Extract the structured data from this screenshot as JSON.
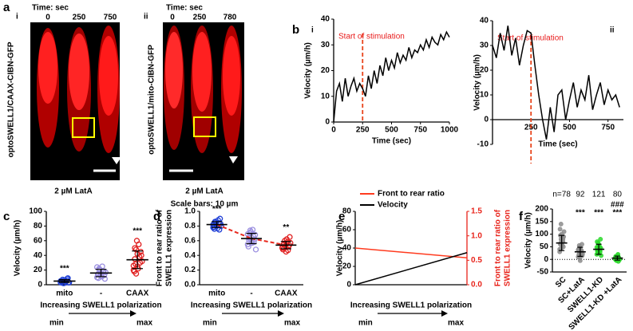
{
  "figure_a": {
    "panel": "a",
    "scale_note": "Scale bars: 10 µm",
    "images": [
      {
        "label": "i",
        "time_label": "Time: sec",
        "times": [
          0,
          250,
          750
        ],
        "construct": "optoSWELL1/CAAX-CIBN-GFP",
        "treatment": "2 µM LatA"
      },
      {
        "label": "ii",
        "time_label": "Time: sec",
        "times": [
          0,
          250,
          780
        ],
        "construct": "optoSWELL1/mito-CIBN-GFP",
        "treatment": "2 µM LatA"
      }
    ]
  },
  "chart_data": [
    {
      "type": "line",
      "panel": "b",
      "sub": "i",
      "y_label": [
        "Velocity (µm/h)"
      ],
      "x_label": "Time (sec)",
      "annotation": "Start of stimulation",
      "event_x": 250,
      "event_color": "#e8431a",
      "annotation_color": "#e81a1a",
      "x": [
        0,
        25,
        50,
        75,
        100,
        125,
        150,
        175,
        200,
        225,
        250,
        275,
        300,
        325,
        350,
        375,
        400,
        425,
        450,
        475,
        500,
        525,
        550,
        575,
        600,
        625,
        650,
        675,
        700,
        725,
        750,
        775,
        800,
        825,
        850,
        875,
        900,
        925,
        950,
        975,
        1000
      ],
      "values": [
        0,
        12,
        15,
        8,
        17,
        10,
        14,
        17,
        12,
        15,
        13,
        10,
        18,
        13,
        20,
        15,
        22,
        18,
        25,
        20,
        24,
        21,
        27,
        23,
        26,
        24,
        29,
        25,
        28,
        27,
        30,
        28,
        32,
        29,
        33,
        31,
        30,
        34,
        32,
        35,
        33
      ],
      "color": "#000000",
      "xlim": [
        0,
        1000
      ],
      "xticks": [
        0,
        250,
        500,
        750,
        1000
      ],
      "ylim": [
        0,
        40
      ],
      "yticks": [
        0,
        10,
        20,
        30,
        40
      ]
    },
    {
      "type": "line",
      "panel": null,
      "sub": "ii",
      "y_label": [
        "Velocity (µm/h)"
      ],
      "x_label": "Time (sec)",
      "annotation": "Start of stimulation",
      "event_x": 250,
      "event_color": "#e8431a",
      "annotation_color": "#e81a1a",
      "x_axis_at_zero": true,
      "x": [
        0,
        25,
        50,
        75,
        100,
        125,
        150,
        175,
        200,
        225,
        250,
        275,
        300,
        325,
        350,
        375,
        400,
        425,
        450,
        475,
        500,
        525,
        550,
        575,
        600,
        625,
        650,
        675,
        700,
        725,
        750,
        775,
        800,
        825
      ],
      "values": [
        30,
        25,
        35,
        28,
        38,
        26,
        33,
        22,
        30,
        36,
        35,
        22,
        10,
        0,
        -8,
        5,
        -5,
        10,
        12,
        0,
        8,
        15,
        5,
        12,
        8,
        18,
        4,
        10,
        15,
        6,
        12,
        8,
        10,
        5
      ],
      "color": "#000000",
      "xlim": [
        0,
        850
      ],
      "xticks": [
        250,
        500,
        750
      ],
      "ylim": [
        -10,
        40
      ],
      "yticks": [
        -10,
        0,
        10,
        20,
        30,
        40
      ]
    },
    {
      "type": "dotplot",
      "panel": "c",
      "y_label": [
        "Velocity (µm/h)"
      ],
      "x_label": "Increasing SWELL1 polarization",
      "x_min_label": "min",
      "x_max_label": "max",
      "categories": [
        "mito",
        "-",
        "CAAX"
      ],
      "colors": [
        "#1f3fd6",
        "#9b8fe0",
        "#e02020"
      ],
      "marker": "open",
      "values": [
        [
          3,
          5,
          2,
          6,
          4,
          8,
          3,
          5,
          7,
          2,
          4,
          6,
          9,
          3,
          5,
          4
        ],
        [
          10,
          15,
          20,
          12,
          25,
          18,
          8,
          14,
          22,
          16,
          11,
          19,
          13,
          17,
          24,
          9,
          21,
          15
        ],
        [
          20,
          35,
          48,
          25,
          55,
          30,
          40,
          18,
          28,
          60,
          22,
          38,
          45,
          32,
          26,
          50,
          15,
          42
        ]
      ],
      "means": [
        5,
        16,
        34
      ],
      "errors": [
        2,
        5,
        12
      ],
      "annotations": [
        "***",
        null,
        "***"
      ],
      "ylim": [
        0,
        100
      ],
      "yticks": [
        0,
        20,
        40,
        60,
        80,
        100
      ]
    },
    {
      "type": "dotplot",
      "panel": "d",
      "y_label": [
        "Front to rear ratio of",
        "SWELL1 expression"
      ],
      "x_label": "Increasing SWELL1 polarization",
      "x_min_label": "min",
      "x_max_label": "max",
      "categories": [
        "mito",
        "-",
        "CAAX"
      ],
      "colors": [
        "#1f3fd6",
        "#9b8fe0",
        "#e02020"
      ],
      "marker": "open",
      "connect_means": true,
      "connect_color": "#e82a1f",
      "values": [
        [
          0.78,
          0.82,
          0.85,
          0.8,
          0.88,
          0.75,
          0.83,
          0.79,
          0.86,
          0.81,
          0.77,
          0.84,
          0.9,
          0.8,
          0.82,
          0.76
        ],
        [
          0.55,
          0.65,
          0.7,
          0.6,
          0.75,
          0.58,
          0.68,
          0.52,
          0.63,
          0.72,
          0.57,
          0.66,
          0.62,
          0.48,
          0.69,
          0.61,
          0.74,
          0.59
        ],
        [
          0.5,
          0.55,
          0.6,
          0.45,
          0.58,
          0.52,
          0.65,
          0.48,
          0.56,
          0.53,
          0.62,
          0.47,
          0.54,
          0.57,
          0.51
        ]
      ],
      "means": [
        0.82,
        0.63,
        0.54
      ],
      "errors": [
        0.04,
        0.07,
        0.05
      ],
      "annotations": [
        "***",
        null,
        "**"
      ],
      "ylim": [
        0,
        1
      ],
      "yticks": [
        {
          "value": 0,
          "label": "0.0"
        },
        0.2,
        0.4,
        0.6,
        0.8,
        {
          "value": 1,
          "label": "1.0"
        }
      ]
    },
    {
      "type": "line",
      "panel": "e",
      "y_label": [
        "Velocity (µm/h)"
      ],
      "y2_label": [
        "Front to rear ratio of",
        "SWELL1 expression"
      ],
      "x_label": "Increasing SWELL1 polarization",
      "x_min_label": "min",
      "x_max_label": "max",
      "legend": "upper left",
      "y2_color": "#e8231a",
      "x": [
        0,
        1
      ],
      "xlim": [
        0,
        1
      ],
      "series": [
        {
          "name": "Front to rear ratio",
          "color": "#ff3b1f",
          "values": [
            0.75,
            0.55
          ],
          "axis": "y2"
        },
        {
          "name": "Velocity",
          "color": "#000000",
          "values": [
            0,
            35
          ]
        }
      ],
      "ylim": [
        0,
        80
      ],
      "yticks": [
        0,
        20,
        40,
        60,
        80
      ],
      "y2lim": [
        0,
        1.5
      ],
      "y2ticks": [
        {
          "value": 0,
          "label": "0.0"
        },
        0.5,
        {
          "value": 1,
          "label": "1.0"
        },
        1.5
      ]
    },
    {
      "type": "dotplot",
      "panel": "f",
      "y_label": [
        "Velocity (µm/h)"
      ],
      "zero_line": true,
      "rotate_categories": true,
      "categories": [
        "SC",
        "SC+LatA",
        "SWELL1-KD",
        "SWELL1-KD +LatA"
      ],
      "colors": [
        "#8c8c8c",
        "#8c8c8c",
        "#2bd92b",
        "#2bd92b"
      ],
      "marker": "filled",
      "values": [
        [
          40,
          60,
          80,
          100,
          55,
          70,
          90,
          120,
          65,
          45,
          75,
          85,
          50,
          110,
          30,
          95,
          140,
          60,
          70,
          80
        ],
        [
          10,
          20,
          30,
          45,
          25,
          35,
          15,
          40,
          55,
          5,
          28,
          32,
          60,
          22,
          38,
          18,
          48,
          -5,
          30,
          26
        ],
        [
          20,
          35,
          50,
          60,
          40,
          30,
          45,
          70,
          25,
          55,
          38,
          42,
          80,
          15,
          48,
          33,
          65,
          28,
          52,
          36
        ],
        [
          0,
          5,
          -5,
          10,
          3,
          8,
          -2,
          12,
          2,
          6,
          15,
          -8,
          4,
          1,
          7,
          -3,
          9,
          0,
          20,
          3
        ]
      ],
      "means": [
        65,
        30,
        40,
        5
      ],
      "errors": [
        30,
        18,
        20,
        8
      ],
      "n_labels": [
        "n=78",
        "92",
        "121",
        "80"
      ],
      "annotations": [
        null,
        "***",
        "***",
        "***"
      ],
      "extra_annotations": [
        null,
        null,
        null,
        "###"
      ],
      "ylim": [
        -50,
        200
      ],
      "yticks": [
        -50,
        0,
        50,
        100,
        150,
        200
      ]
    }
  ]
}
